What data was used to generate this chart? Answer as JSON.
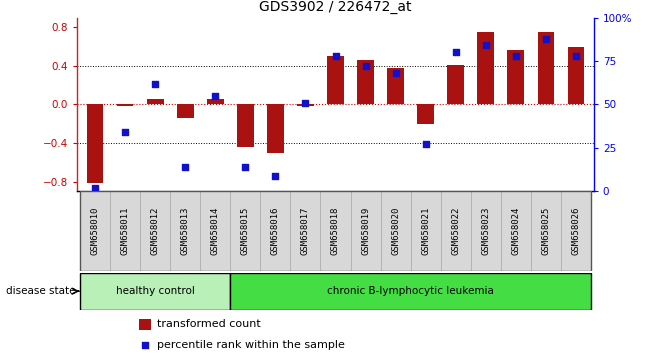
{
  "title": "GDS3902 / 226472_at",
  "samples": [
    "GSM658010",
    "GSM658011",
    "GSM658012",
    "GSM658013",
    "GSM658014",
    "GSM658015",
    "GSM658016",
    "GSM658017",
    "GSM658018",
    "GSM658019",
    "GSM658020",
    "GSM658021",
    "GSM658022",
    "GSM658023",
    "GSM658024",
    "GSM658025",
    "GSM658026"
  ],
  "bar_values": [
    -0.82,
    -0.02,
    0.06,
    -0.14,
    0.06,
    -0.44,
    -0.5,
    -0.02,
    0.5,
    0.46,
    0.38,
    -0.2,
    0.41,
    0.75,
    0.56,
    0.75,
    0.6
  ],
  "dot_pct": [
    2,
    34,
    62,
    14,
    55,
    14,
    9,
    51,
    78,
    72,
    68,
    27,
    80,
    84,
    78,
    88,
    78
  ],
  "groups": [
    {
      "label": "healthy control",
      "start": 0,
      "end": 5
    },
    {
      "label": "chronic B-lymphocytic leukemia",
      "start": 5,
      "end": 17
    }
  ],
  "bar_color": "#aa1111",
  "dot_color": "#1111cc",
  "bg_color": "#ffffff",
  "ylim_left": [
    -0.9,
    0.9
  ],
  "ylim_right": [
    0,
    100
  ],
  "yticks_left": [
    -0.8,
    -0.4,
    0.0,
    0.4,
    0.8
  ],
  "yticks_right": [
    0,
    25,
    50,
    75,
    100
  ],
  "group_colors": [
    "#b8f0b8",
    "#44dd44"
  ],
  "label_gray": "#d8d8d8",
  "title_fontsize": 10,
  "tick_fontsize": 7.5,
  "sample_fontsize": 6.5
}
